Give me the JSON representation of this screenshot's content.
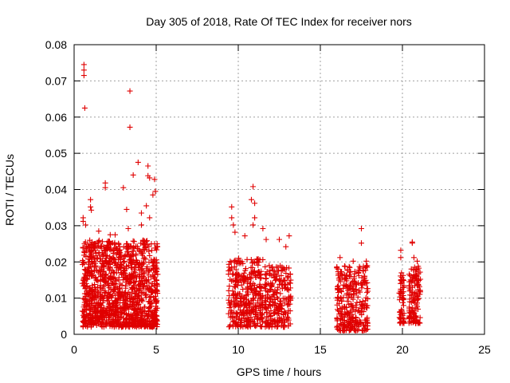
{
  "chart_data": {
    "type": "scatter",
    "title": "Day 305 of 2018, Rate Of TEC Index for receiver nors",
    "xlabel": "GPS time / hours",
    "ylabel": "ROTI / TECUs",
    "xlim": [
      0,
      25
    ],
    "ylim": [
      0,
      0.08
    ],
    "xticks": [
      0,
      5,
      10,
      15,
      20,
      25
    ],
    "xtick_labels": [
      "0",
      "5",
      "10",
      "15",
      "20",
      "25"
    ],
    "yticks": [
      0,
      0.01,
      0.02,
      0.03,
      0.04,
      0.05,
      0.06,
      0.07,
      0.08
    ],
    "ytick_labels": [
      "0",
      "0.01",
      "0.02",
      "0.03",
      "0.04",
      "0.05",
      "0.06",
      "0.07",
      "0.08"
    ],
    "grid": true,
    "marker": "+",
    "color": "#e00000",
    "series": [
      {
        "name": "ROTI",
        "points": [
          [
            0.6,
            0.0745
          ],
          [
            0.6,
            0.073
          ],
          [
            0.6,
            0.0715
          ],
          [
            0.65,
            0.0625
          ],
          [
            3.4,
            0.0672
          ],
          [
            3.4,
            0.0572
          ],
          [
            3.9,
            0.0475
          ],
          [
            4.5,
            0.0465
          ],
          [
            4.5,
            0.0438
          ],
          [
            4.6,
            0.0432
          ],
          [
            4.9,
            0.0428
          ],
          [
            4.95,
            0.0395
          ],
          [
            4.8,
            0.0385
          ],
          [
            3.0,
            0.0405
          ],
          [
            3.6,
            0.044
          ],
          [
            1.9,
            0.0418
          ],
          [
            1.9,
            0.0405
          ],
          [
            1.0,
            0.0372
          ],
          [
            1.0,
            0.0352
          ],
          [
            1.05,
            0.0343
          ],
          [
            0.55,
            0.0322
          ],
          [
            0.55,
            0.0312
          ],
          [
            0.7,
            0.0302
          ],
          [
            1.5,
            0.0285
          ],
          [
            2.2,
            0.0275
          ],
          [
            2.5,
            0.0275
          ],
          [
            3.2,
            0.0345
          ],
          [
            4.1,
            0.0335
          ],
          [
            4.4,
            0.0355
          ],
          [
            4.6,
            0.0322
          ],
          [
            4.1,
            0.0302
          ],
          [
            3.3,
            0.0292
          ],
          [
            9.6,
            0.0352
          ],
          [
            9.6,
            0.0322
          ],
          [
            9.7,
            0.0302
          ],
          [
            9.8,
            0.0282
          ],
          [
            10.4,
            0.0272
          ],
          [
            10.9,
            0.0408
          ],
          [
            10.8,
            0.0372
          ],
          [
            11.0,
            0.0362
          ],
          [
            11.0,
            0.0322
          ],
          [
            10.9,
            0.0302
          ],
          [
            11.5,
            0.0292
          ],
          [
            11.7,
            0.0262
          ],
          [
            12.5,
            0.0262
          ],
          [
            13.1,
            0.0272
          ],
          [
            12.9,
            0.0242
          ],
          [
            17.5,
            0.0292
          ],
          [
            17.5,
            0.0252
          ],
          [
            16.2,
            0.0212
          ],
          [
            17.0,
            0.0202
          ],
          [
            17.8,
            0.0202
          ],
          [
            19.9,
            0.0232
          ],
          [
            19.9,
            0.0212
          ],
          [
            20.6,
            0.0255
          ],
          [
            20.6,
            0.0252
          ],
          [
            20.7,
            0.0212
          ],
          [
            20.9,
            0.0202
          ]
        ],
        "dense_clusters": [
          {
            "x_range": [
              0.5,
              5.1
            ],
            "y_range": [
              0.002,
              0.026
            ],
            "count": 1300
          },
          {
            "x_range": [
              9.4,
              11.5
            ],
            "y_range": [
              0.002,
              0.021
            ],
            "count": 360
          },
          {
            "x_range": [
              11.6,
              13.2
            ],
            "y_range": [
              0.002,
              0.019
            ],
            "count": 240
          },
          {
            "x_range": [
              16.0,
              17.9
            ],
            "y_range": [
              0.001,
              0.019
            ],
            "count": 300
          },
          {
            "x_range": [
              19.8,
              20.1
            ],
            "y_range": [
              0.003,
              0.017
            ],
            "count": 60
          },
          {
            "x_range": [
              20.4,
              21.1
            ],
            "y_range": [
              0.003,
              0.019
            ],
            "count": 130
          }
        ]
      }
    ]
  }
}
